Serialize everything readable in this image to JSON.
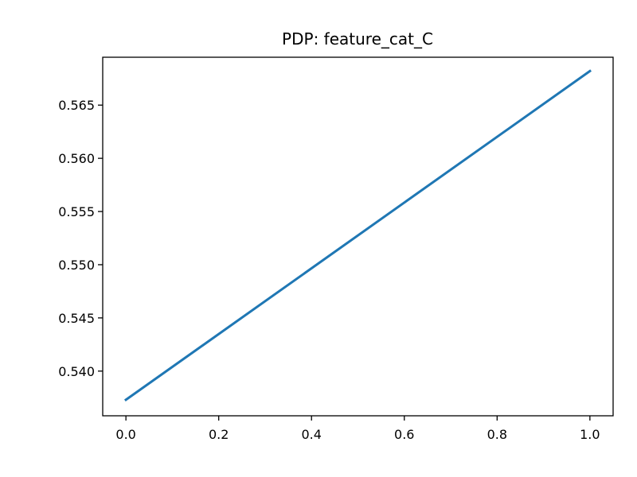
{
  "chart_data": {
    "type": "line",
    "title": "PDP: feature_cat_C",
    "xlabel": "",
    "ylabel": "",
    "grid": false,
    "xlim": [
      -0.05,
      1.05
    ],
    "ylim": [
      0.5358,
      0.5695
    ],
    "x_ticks": [
      0.0,
      0.2,
      0.4,
      0.6,
      0.8,
      1.0
    ],
    "x_tick_labels": [
      "0.0",
      "0.2",
      "0.4",
      "0.6",
      "0.8",
      "1.0"
    ],
    "y_ticks": [
      0.54,
      0.545,
      0.55,
      0.555,
      0.56,
      0.565
    ],
    "y_tick_labels": [
      "0.540",
      "0.545",
      "0.550",
      "0.555",
      "0.560",
      "0.565"
    ],
    "series": [
      {
        "x": [
          0.0,
          1.0
        ],
        "values": [
          0.5373,
          0.5682
        ],
        "color": "#1f77b4"
      }
    ]
  }
}
